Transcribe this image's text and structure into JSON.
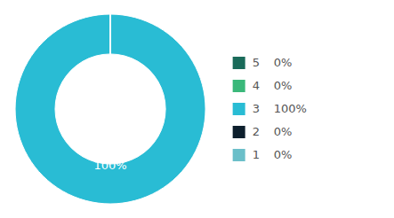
{
  "chart_data": {
    "type": "donut",
    "categories": [
      "5",
      "4",
      "3",
      "2",
      "1"
    ],
    "values": [
      0.0001,
      0.0001,
      100,
      0.0001,
      0.0001
    ],
    "value_labels": [
      "0%",
      "0%",
      "100%",
      "0%",
      "0%"
    ],
    "colors": [
      "#1a6b5a",
      "#3ab87a",
      "#29bcd4",
      "#0d1f2d",
      "#6bbfc9"
    ],
    "annotations": [
      {
        "text": "100%",
        "color": "#ffffff"
      }
    ],
    "legend": "right"
  }
}
